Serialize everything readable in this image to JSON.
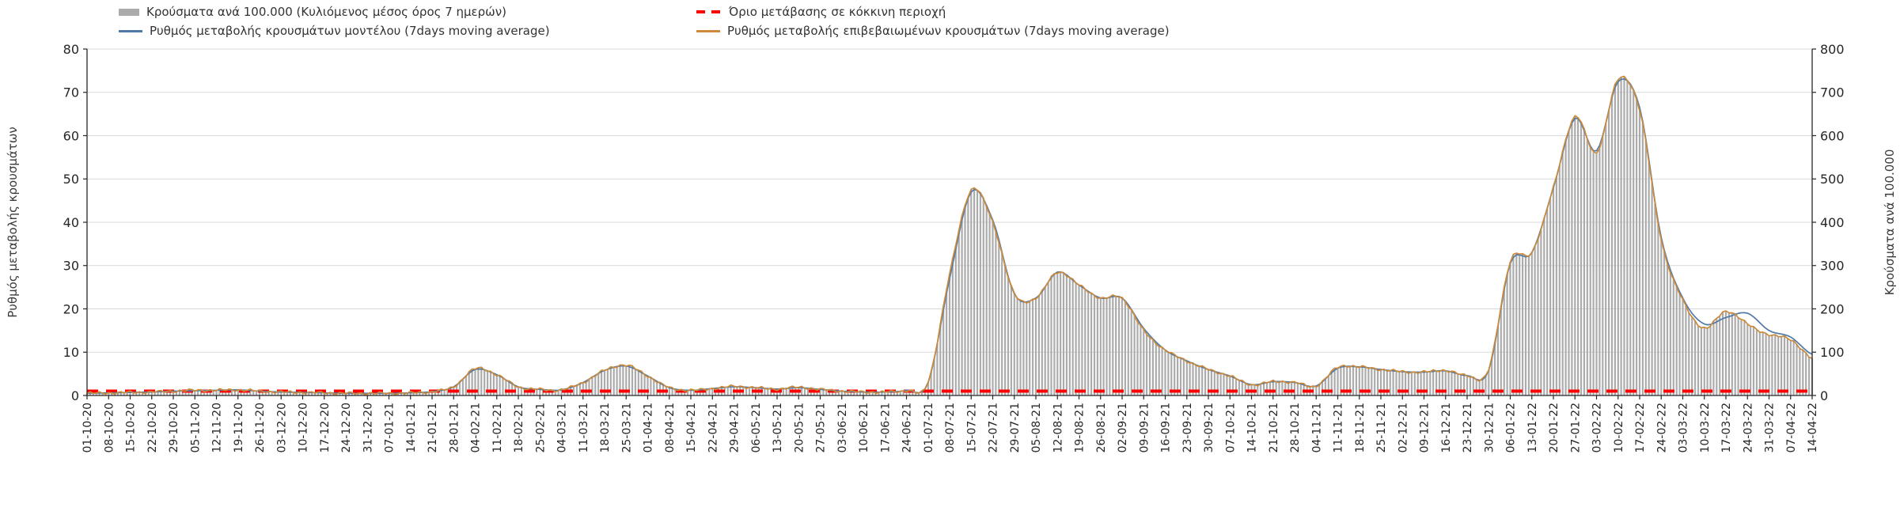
{
  "colors": {
    "background": "#ffffff",
    "grid": "#d9d9d9",
    "axis": "#262626",
    "text": "#262626",
    "bars": "#ababab",
    "model_line": "#4f7aa8",
    "confirmed_line": "#cc8a3d",
    "threshold": "#ff0000"
  },
  "chart_data": {
    "type": "bar+line",
    "title": "",
    "legend_position": "top",
    "grid": "horizontal",
    "x_label_rotation": 90,
    "left_axis": {
      "title": "Ρυθμός μεταβολής κρουσμάτων",
      "range": [
        0,
        80
      ],
      "ticks": [
        0,
        10,
        20,
        30,
        40,
        50,
        60,
        70,
        80
      ]
    },
    "right_axis": {
      "title": "Κρούσματα ανά 100.000",
      "range": [
        0,
        800
      ],
      "ticks": [
        0,
        100,
        200,
        300,
        400,
        500,
        600,
        700,
        800
      ]
    },
    "threshold": {
      "label": "Όριο μετάβασης σε κόκκινη περιοχή",
      "value": 1,
      "axis": "left",
      "color": "#ff0000",
      "style": "dashed"
    },
    "x_weekly": [
      "01-10-20",
      "08-10-20",
      "15-10-20",
      "22-10-20",
      "29-10-20",
      "05-11-20",
      "12-11-20",
      "19-11-20",
      "26-11-20",
      "03-12-20",
      "10-12-20",
      "17-12-20",
      "24-12-20",
      "31-12-20",
      "07-01-21",
      "14-01-21",
      "21-01-21",
      "28-01-21",
      "04-02-21",
      "11-02-21",
      "18-02-21",
      "25-02-21",
      "04-03-21",
      "11-03-21",
      "18-03-21",
      "25-03-21",
      "01-04-21",
      "08-04-21",
      "15-04-21",
      "22-04-21",
      "29-04-21",
      "06-05-21",
      "13-05-21",
      "20-05-21",
      "27-05-21",
      "03-06-21",
      "10-06-21",
      "17-06-21",
      "24-06-21",
      "01-07-21",
      "08-07-21",
      "15-07-21",
      "22-07-21",
      "29-07-21",
      "05-08-21",
      "12-08-21",
      "19-08-21",
      "26-08-21",
      "02-09-21",
      "09-09-21",
      "16-09-21",
      "23-09-21",
      "30-09-21",
      "07-10-21",
      "14-10-21",
      "21-10-21",
      "28-10-21",
      "04-11-21",
      "11-11-21",
      "18-11-21",
      "25-11-21",
      "02-12-21",
      "09-12-21",
      "16-12-21",
      "23-12-21",
      "30-12-21",
      "06-01-22",
      "13-01-22",
      "20-01-22",
      "27-01-22",
      "03-02-22",
      "10-02-22",
      "17-02-22",
      "24-02-22",
      "03-03-22",
      "10-03-22",
      "17-03-22",
      "24-03-22",
      "31-03-22",
      "07-04-22",
      "14-04-22"
    ],
    "series": [
      {
        "name": "Κρούσματα ανά 100.000 (Κυλιόμενος μέσος όρος 7 ημερών)",
        "type": "bar",
        "axis": "right",
        "color": "#ababab",
        "weekly_values": [
          5,
          6,
          7,
          8,
          10,
          12,
          12,
          13,
          10,
          8,
          7,
          6,
          5,
          5,
          5,
          6,
          9,
          20,
          62,
          48,
          20,
          14,
          13,
          30,
          58,
          70,
          45,
          18,
          12,
          16,
          21,
          18,
          15,
          19,
          14,
          10,
          8,
          8,
          12,
          30,
          280,
          475,
          400,
          235,
          225,
          285,
          255,
          225,
          225,
          150,
          105,
          80,
          60,
          45,
          25,
          32,
          30,
          22,
          65,
          66,
          60,
          55,
          54,
          58,
          46,
          60,
          310,
          330,
          480,
          645,
          560,
          730,
          660,
          360,
          220,
          155,
          195,
          165,
          140,
          130,
          85
        ]
      },
      {
        "name": "Ρυθμός μεταβολής κρουσμάτων μοντέλου (7days moving average)",
        "type": "line",
        "axis": "left",
        "color": "#4f7aa8",
        "weekly_values": [
          0.5,
          0.6,
          0.7,
          0.8,
          1.0,
          1.1,
          1.2,
          1.3,
          1.0,
          0.8,
          0.7,
          0.6,
          0.5,
          0.5,
          0.5,
          0.6,
          0.9,
          2.0,
          6.0,
          4.8,
          2.0,
          1.4,
          1.3,
          3.0,
          5.8,
          6.8,
          4.5,
          1.8,
          1.2,
          1.6,
          2.0,
          1.8,
          1.5,
          1.8,
          1.4,
          1.0,
          0.8,
          0.8,
          1.2,
          3.0,
          27.0,
          47.0,
          40.5,
          23.5,
          22.5,
          28.5,
          25.5,
          22.5,
          22.5,
          15.5,
          10.5,
          8.0,
          6.0,
          4.5,
          2.5,
          3.2,
          3.0,
          2.2,
          6.3,
          6.6,
          6.0,
          5.5,
          5.4,
          5.7,
          4.6,
          5.8,
          30.5,
          33.0,
          48.0,
          64.0,
          56.5,
          72.5,
          66.5,
          36.5,
          22.5,
          16.5,
          18.0,
          19.0,
          15.0,
          13.5,
          9.5
        ]
      },
      {
        "name": "Ρυθμός μεταβολής επιβεβαιωμένων κρουσμάτων (7days moving average)",
        "type": "line",
        "axis": "left",
        "color": "#cc8a3d",
        "weekly_values": [
          0.5,
          0.6,
          0.7,
          0.8,
          1.0,
          1.2,
          1.2,
          1.3,
          1.0,
          0.8,
          0.7,
          0.6,
          0.5,
          0.5,
          0.5,
          0.6,
          0.9,
          2.0,
          6.2,
          4.8,
          2.0,
          1.4,
          1.3,
          3.0,
          5.8,
          7.0,
          4.5,
          1.8,
          1.2,
          1.6,
          2.1,
          1.8,
          1.5,
          1.9,
          1.4,
          1.0,
          0.8,
          0.8,
          1.2,
          3.0,
          28.0,
          47.5,
          40.0,
          23.5,
          22.5,
          28.5,
          25.5,
          22.5,
          22.5,
          15.0,
          10.5,
          8.0,
          6.0,
          4.5,
          2.5,
          3.2,
          3.0,
          2.2,
          6.5,
          6.6,
          6.0,
          5.5,
          5.4,
          5.8,
          4.6,
          6.0,
          31.0,
          33.0,
          48.0,
          64.5,
          56.0,
          73.0,
          66.0,
          36.0,
          22.0,
          15.5,
          19.5,
          16.5,
          14.0,
          13.0,
          8.5
        ]
      }
    ]
  }
}
